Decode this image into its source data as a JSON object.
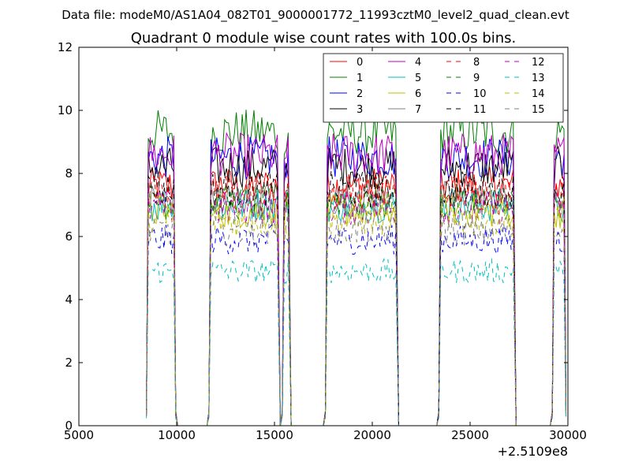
{
  "chart_data": {
    "type": "line",
    "suptitle": "Data file: modeM0/AS1A04_082T01_9000001772_11993cztM0_level2_quad_clean.evt",
    "title": "Quadrant 0 module wise count rates with 100.0s bins.",
    "xlabel": "",
    "ylabel": "",
    "offset_text": "+2.5109e8",
    "xlim": [
      5000,
      30000
    ],
    "ylim": [
      0,
      12
    ],
    "xticks": [
      5000,
      10000,
      15000,
      20000,
      25000,
      30000
    ],
    "yticks": [
      0,
      2,
      4,
      6,
      8,
      10,
      12
    ],
    "grid": false,
    "legend": {
      "placement": "top-right",
      "columns": 4
    },
    "orbits": [
      [
        8450,
        9950
      ],
      [
        11650,
        15200
      ],
      [
        15400,
        15750
      ],
      [
        17600,
        21250
      ],
      [
        23400,
        27250
      ],
      [
        29200,
        29900
      ]
    ],
    "series": [
      {
        "name": "0",
        "color": "#ff0000",
        "dash": "solid",
        "level": 7.6
      },
      {
        "name": "1",
        "color": "#008000",
        "dash": "solid",
        "level": 9.3
      },
      {
        "name": "2",
        "color": "#0000ff",
        "dash": "solid",
        "level": 8.5
      },
      {
        "name": "3",
        "color": "#000000",
        "dash": "solid",
        "level": 8.2
      },
      {
        "name": "4",
        "color": "#bf00bf",
        "dash": "solid",
        "level": 8.6
      },
      {
        "name": "5",
        "color": "#00bfbf",
        "dash": "solid",
        "level": 7.0
      },
      {
        "name": "6",
        "color": "#bfbf00",
        "dash": "solid",
        "level": 6.8
      },
      {
        "name": "7",
        "color": "#808080",
        "dash": "solid",
        "level": 7.2
      },
      {
        "name": "8",
        "color": "#ff0000",
        "dash": "dashed",
        "level": 7.4
      },
      {
        "name": "9",
        "color": "#008000",
        "dash": "dashed",
        "level": 7.1
      },
      {
        "name": "10",
        "color": "#0000ff",
        "dash": "dashed",
        "level": 5.9
      },
      {
        "name": "11",
        "color": "#000000",
        "dash": "dashed",
        "level": 7.5
      },
      {
        "name": "12",
        "color": "#bf00bf",
        "dash": "dashed",
        "level": 6.9
      },
      {
        "name": "13",
        "color": "#00bfbf",
        "dash": "dashed",
        "level": 4.9
      },
      {
        "name": "14",
        "color": "#bfbf00",
        "dash": "dashed",
        "level": 6.5
      },
      {
        "name": "15",
        "color": "#808080",
        "dash": "dashed",
        "level": 6.2
      }
    ]
  }
}
